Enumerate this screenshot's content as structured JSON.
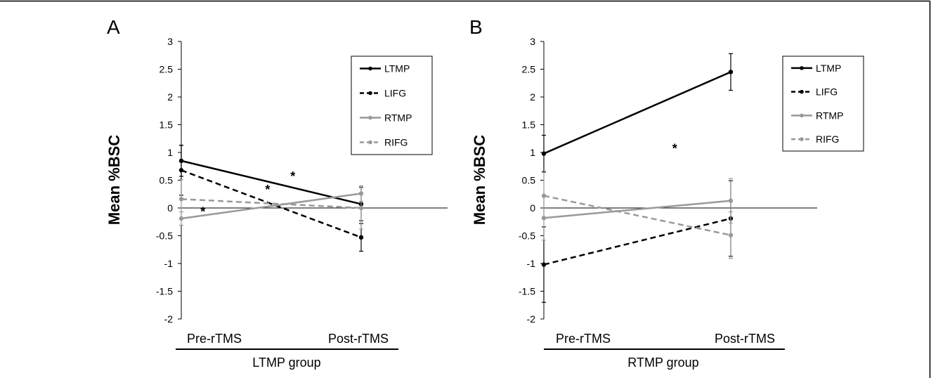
{
  "chart_data": [
    {
      "panel_label": "A",
      "type": "line",
      "ylabel": "Mean %BSC",
      "ylim": [
        -2,
        3
      ],
      "yticks": [
        "3",
        "2.5",
        "2",
        "1.5",
        "1",
        "0.5",
        "0",
        "-0.5",
        "-1",
        "-1.5",
        "-2"
      ],
      "categories": [
        "Pre-rTMS",
        "Post-rTMS"
      ],
      "group_label": "LTMP group",
      "legend_position": "top-right",
      "series": [
        {
          "name": "LTMP",
          "values": [
            0.85,
            0.07
          ],
          "errors": [
            0.28,
            0.3
          ],
          "color": "#000000",
          "dashed": false
        },
        {
          "name": "LIFG",
          "values": [
            0.68,
            -0.53
          ],
          "errors": [
            0.45,
            0.25
          ],
          "color": "#000000",
          "dashed": true
        },
        {
          "name": "RTMP",
          "values": [
            -0.19,
            0.26
          ],
          "errors": [
            0.12,
            0.14
          ],
          "color": "#999999",
          "dashed": false
        },
        {
          "name": "RIFG",
          "values": [
            0.16,
            0.0
          ],
          "errors": [
            0.35,
            0.38
          ],
          "color": "#999999",
          "dashed": true
        }
      ],
      "annotations": [
        {
          "text": "*",
          "x": 0.62,
          "y": 0.62
        },
        {
          "text": "*",
          "x": 0.48,
          "y": 0.38
        },
        {
          "text": "*",
          "x": 0.12,
          "y": -0.02
        }
      ]
    },
    {
      "panel_label": "B",
      "type": "line",
      "ylabel": "Mean %BSC",
      "ylim": [
        -2,
        3
      ],
      "yticks": [
        "3",
        "2.5",
        "2",
        "1.5",
        "1",
        "0.5",
        "0",
        "-0.5",
        "-1",
        "-1.5",
        "-2"
      ],
      "categories": [
        "Pre-rTMS",
        "Post-rTMS"
      ],
      "group_label": "RTMP group",
      "legend_position": "top-right",
      "series": [
        {
          "name": "LTMP",
          "values": [
            0.98,
            2.45
          ],
          "errors": [
            0.33,
            0.33
          ],
          "color": "#000000",
          "dashed": false
        },
        {
          "name": "LIFG",
          "values": [
            -1.02,
            -0.19
          ],
          "errors": [
            0.68,
            0.68
          ],
          "color": "#000000",
          "dashed": true
        },
        {
          "name": "RTMP",
          "values": [
            -0.18,
            0.13
          ],
          "errors": [
            0.4,
            0.4
          ],
          "color": "#999999",
          "dashed": false
        },
        {
          "name": "RIFG",
          "values": [
            0.22,
            -0.49
          ],
          "errors": [
            0.42,
            0.42
          ],
          "color": "#999999",
          "dashed": true
        }
      ],
      "annotations": [
        {
          "text": "*",
          "x": 0.7,
          "y": 1.12
        }
      ]
    }
  ]
}
